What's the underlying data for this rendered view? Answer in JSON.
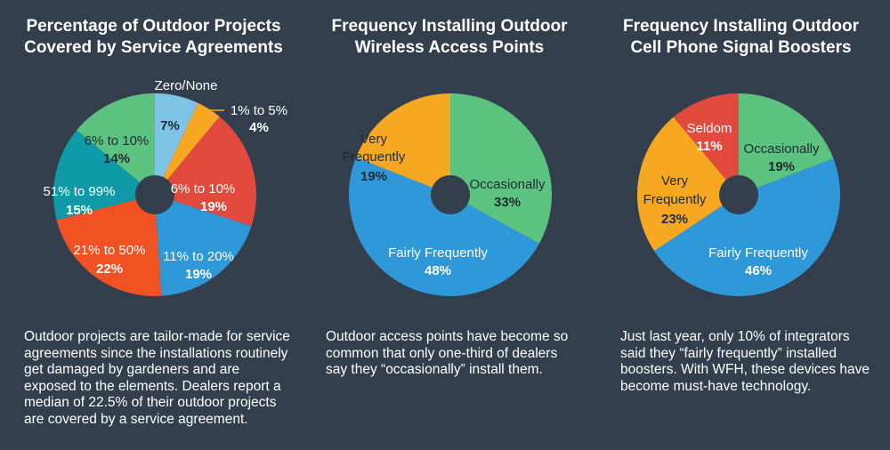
{
  "colors": {
    "background": "#333f4d",
    "hole": "#333f4d",
    "light_blue": "#7cc3e5",
    "orange": "#f7a823",
    "red": "#e14a3c",
    "blue": "#2e98d8",
    "red_orange": "#f05224",
    "teal": "#0f9aa8",
    "green": "#5cc27f"
  },
  "chart_data": [
    {
      "type": "pie",
      "title": "Percentage of Outdoor Projects Covered by Service Agreements",
      "title_lines": [
        "Percentage of Outdoor Projects",
        "Covered by Service Agreements"
      ],
      "caption": "Outdoor projects are tailor-made for service agreements since the installations routinely get damaged by gardeners and are exposed to the elements. Dealers report a median of 22.5% of their outdoor projects are covered by a service agreement.",
      "slices": [
        {
          "label": "Zero/None",
          "value": 7,
          "value_label": "7%",
          "color": "#7cc3e5"
        },
        {
          "label": "1% to 5%",
          "value": 4,
          "value_label": "4%",
          "color": "#f7a823"
        },
        {
          "label": "6% to 10%",
          "value": 19,
          "value_label": "19%",
          "color": "#e14a3c"
        },
        {
          "label": "11% to 20%",
          "value": 19,
          "value_label": "19%",
          "color": "#2e98d8"
        },
        {
          "label": "21% to 50%",
          "value": 22,
          "value_label": "22%",
          "color": "#f05224"
        },
        {
          "label": "51% to 99%",
          "value": 15,
          "value_label": "15%",
          "color": "#0f9aa8"
        },
        {
          "label": "6% to 10%",
          "value": 14,
          "value_label": "14%",
          "color": "#5cc27f"
        }
      ]
    },
    {
      "type": "pie",
      "title": "Frequency Installing Outdoor Wireless Access Points",
      "title_lines": [
        "Frequency Installing Outdoor",
        "Wireless Access Points"
      ],
      "caption": "Outdoor access points have become so common that only one-third of dealers say they “occasionally” install them.",
      "slices": [
        {
          "label": "Occasionally",
          "value": 33,
          "value_label": "33%",
          "color": "#5cc27f"
        },
        {
          "label": "Fairly Frequently",
          "value": 48,
          "value_label": "48%",
          "color": "#2e98d8"
        },
        {
          "label": "Very Frequently",
          "value": 19,
          "value_label": "19%",
          "color": "#f7a823"
        }
      ]
    },
    {
      "type": "pie",
      "title": "Frequency Installing Outdoor Cell Phone Signal Boosters",
      "title_lines": [
        "Frequency Installing Outdoor",
        "Cell Phone Signal Boosters"
      ],
      "caption": "Just last year, only 10% of integrators said they “fairly frequently” installed boosters. With WFH, these devices have become must-have technology.",
      "slices": [
        {
          "label": "Occasionally",
          "value": 19,
          "value_label": "19%",
          "color": "#5cc27f"
        },
        {
          "label": "Fairly Frequently",
          "value": 46,
          "value_label": "46%",
          "color": "#2e98d8"
        },
        {
          "label": "Very Frequently",
          "value": 23,
          "value_label": "23%",
          "color": "#f7a823"
        },
        {
          "label": "Seldom",
          "value": 11,
          "value_label": "11%",
          "color": "#e14a3c"
        }
      ]
    }
  ]
}
